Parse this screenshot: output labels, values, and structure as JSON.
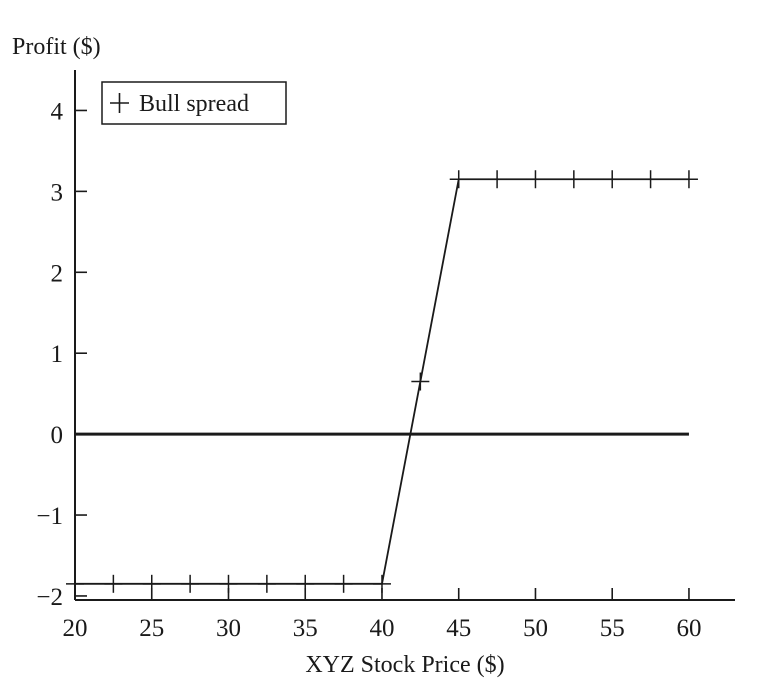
{
  "chart_data": {
    "type": "line",
    "title": "",
    "xlabel": "XYZ Stock Price ($)",
    "ylabel": "Profit ($)",
    "xlim": [
      20,
      63
    ],
    "ylim": [
      -2.05,
      4.5
    ],
    "x_ticks": [
      20,
      25,
      30,
      35,
      40,
      45,
      50,
      55,
      60
    ],
    "y_ticks": [
      -2,
      -1,
      0,
      1,
      2,
      3,
      4
    ],
    "x_tick_labels": [
      "20",
      "25",
      "30",
      "35",
      "40",
      "45",
      "50",
      "55",
      "60"
    ],
    "y_tick_labels": [
      "−2",
      "−1",
      "0",
      "1",
      "2",
      "3",
      "4"
    ],
    "grid": false,
    "legend": {
      "position": "top-left",
      "entries": [
        "Bull spread"
      ]
    },
    "series": [
      {
        "name": "Bull spread",
        "marker": "plus",
        "x": [
          20,
          22.5,
          25,
          27.5,
          30,
          32.5,
          35,
          37.5,
          40,
          42.5,
          45,
          47.5,
          50,
          52.5,
          55,
          57.5,
          60
        ],
        "y": [
          -1.85,
          -1.85,
          -1.85,
          -1.85,
          -1.85,
          -1.85,
          -1.85,
          -1.85,
          -1.85,
          0.65,
          3.15,
          3.15,
          3.15,
          3.15,
          3.15,
          3.15,
          3.15
        ]
      }
    ],
    "zero_line": {
      "y": 0,
      "x_from": 20,
      "x_to": 60
    }
  }
}
